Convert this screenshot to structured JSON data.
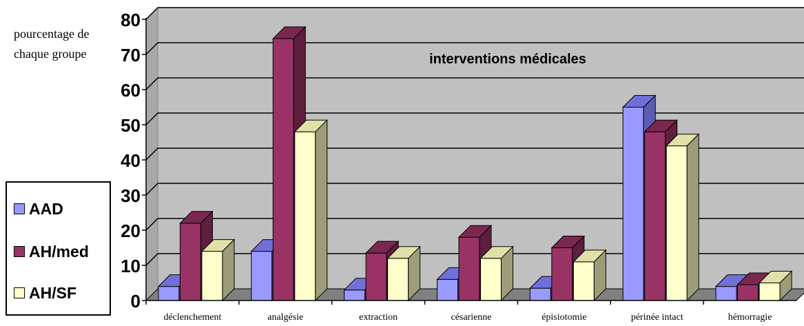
{
  "chart_data": {
    "type": "bar",
    "title": "interventions médicales",
    "ylabel": "pourcentage de chaque groupe",
    "xlabel": "",
    "ylim": [
      0,
      80
    ],
    "yticks": [
      "0",
      "10",
      "20",
      "30",
      "40",
      "50",
      "60",
      "70",
      "80"
    ],
    "categories": [
      "déclenchement",
      "analgésie",
      "extraction",
      "césarienne",
      "épisiotomie",
      "périnée intact",
      "hémorragie"
    ],
    "series": [
      {
        "name": "AAD",
        "values": [
          4,
          14,
          3,
          6,
          3.5,
          55,
          4
        ],
        "color": "#9999ff",
        "top": "#7070d8",
        "side": "#5c5cb4"
      },
      {
        "name": "AH/med",
        "values": [
          22,
          74.5,
          13.5,
          18,
          15,
          48,
          4.5
        ],
        "color": "#993366",
        "top": "#7a2850",
        "side": "#5e1e3e"
      },
      {
        "name": "AH/SF",
        "values": [
          14,
          48,
          12,
          12,
          11,
          44,
          5
        ],
        "color": "#ffffcc",
        "top": "#e0e0a8",
        "side": "#9c9c78"
      }
    ],
    "grid": true,
    "legend_position": "left-bottom",
    "wall_color": "#c0c0c0",
    "floor_color": "#808080"
  }
}
